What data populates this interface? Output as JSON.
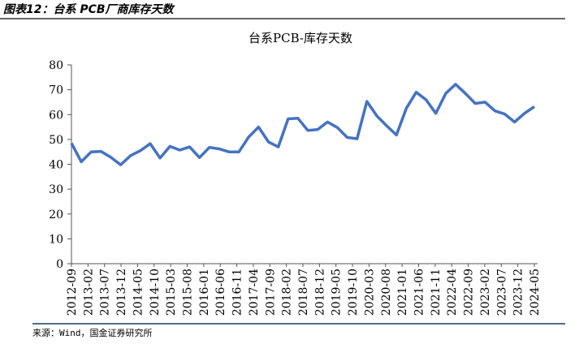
{
  "header": {
    "title": "图表12：台系 PCB厂商库存天数"
  },
  "chart_data": {
    "type": "line",
    "title": "台系PCB-库存天数",
    "xticks": [
      "2012-09",
      "2013-02",
      "2013-07",
      "2013-12",
      "2014-05",
      "2014-10",
      "2015-03",
      "2015-08",
      "2016-01",
      "2016-06",
      "2016-11",
      "2017-04",
      "2017-09",
      "2018-02",
      "2018-07",
      "2018-12",
      "2019-05",
      "2019-10",
      "2020-03",
      "2020-08",
      "2021-01",
      "2021-06",
      "2021-11",
      "2022-04",
      "2022-09",
      "2023-02",
      "2023-07",
      "2023-12",
      "2024-05"
    ],
    "values": [
      48.5,
      41,
      45,
      45.2,
      42.8,
      39.8,
      43.5,
      45.5,
      48.3,
      42.5,
      47.2,
      45.7,
      47,
      42.7,
      46.8,
      46.2,
      45,
      45,
      51,
      55,
      49,
      47,
      58.3,
      58.5,
      53.6,
      54,
      57,
      54.8,
      50.8,
      50.3,
      65.3,
      59.5,
      55.5,
      51.8,
      62.5,
      69,
      66,
      60.5,
      68.5,
      72.2,
      68.5,
      64.5,
      65,
      61.5,
      60.2,
      57,
      60.5,
      63.2
    ],
    "color": "#4472c4",
    "ylim": [
      0,
      80
    ],
    "yticks": [
      0,
      10,
      20,
      30,
      40,
      50,
      60,
      70,
      80
    ]
  },
  "footer": {
    "source": "来源：Wind，国金证券研究所"
  }
}
